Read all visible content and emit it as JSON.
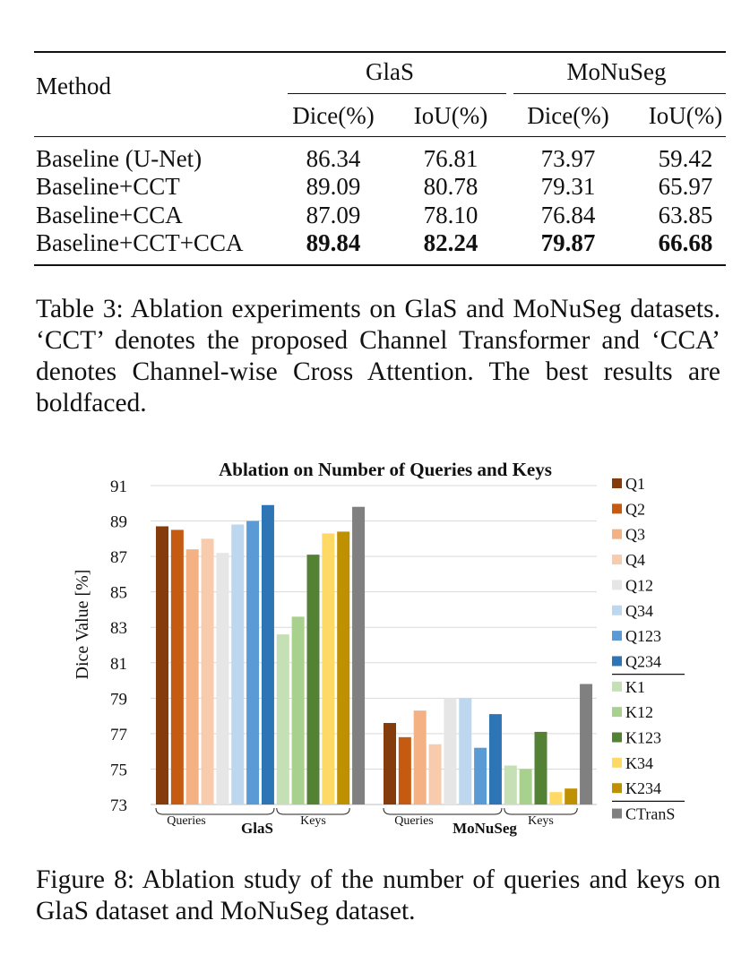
{
  "table": {
    "columns": {
      "method": "Method",
      "group1": "GlaS",
      "group2": "MoNuSeg",
      "dice": "Dice(%)",
      "iou": "IoU(%)"
    },
    "rows": [
      {
        "method": "Baseline (U-Net)",
        "values": [
          "86.34",
          "76.81",
          "73.97",
          "59.42"
        ],
        "bold": false
      },
      {
        "method": "Baseline+CCT",
        "values": [
          "89.09",
          "80.78",
          "79.31",
          "65.97"
        ],
        "bold": false
      },
      {
        "method": "Baseline+CCA",
        "values": [
          "87.09",
          "78.10",
          "76.84",
          "63.85"
        ],
        "bold": false
      },
      {
        "method": "Baseline+CCT+CCA",
        "values": [
          "89.84",
          "82.24",
          "79.87",
          "66.68"
        ],
        "bold": true
      }
    ]
  },
  "table_caption": "Table 3: Ablation experiments on GlaS and MoNuSeg datasets. ‘CCT’ denotes the proposed Channel Transformer and ‘CCA’ denotes Channel-wise Cross Attention. The best results are boldfaced.",
  "figure_caption": "Figure 8: Ablation study of the number of queries and keys on GlaS dataset and MoNuSeg dataset.",
  "chart_data": {
    "type": "bar",
    "title": "Ablation on Number of Queries and Keys",
    "ylabel": "Dice Value [%]",
    "xlabel": "",
    "ylim": [
      73,
      91
    ],
    "yticks": [
      73,
      75,
      77,
      79,
      81,
      83,
      85,
      87,
      89,
      91
    ],
    "grid": true,
    "legend_position": "right",
    "categories": [
      "GlaS",
      "MoNuSeg"
    ],
    "subgroup_labels": {
      "queries": "Queries",
      "keys": "Keys"
    },
    "series": [
      {
        "name": "Q1",
        "color": "#843c0c",
        "values": [
          88.7,
          77.6
        ]
      },
      {
        "name": "Q2",
        "color": "#c55a11",
        "values": [
          88.5,
          76.8
        ]
      },
      {
        "name": "Q3",
        "color": "#f4b183",
        "values": [
          87.4,
          78.3
        ]
      },
      {
        "name": "Q4",
        "color": "#f8cbad",
        "values": [
          88.0,
          76.4
        ]
      },
      {
        "name": "Q12",
        "color": "#e7e6e6",
        "values": [
          87.2,
          79.0
        ]
      },
      {
        "name": "Q34",
        "color": "#bdd7ee",
        "values": [
          88.8,
          79.0
        ]
      },
      {
        "name": "Q123",
        "color": "#5b9bd5",
        "values": [
          89.0,
          76.2
        ]
      },
      {
        "name": "Q234",
        "color": "#2e75b6",
        "values": [
          89.9,
          78.1
        ]
      },
      {
        "name": "K1",
        "color": "#c5e0b4",
        "values": [
          82.6,
          75.2
        ]
      },
      {
        "name": "K12",
        "color": "#a9d18e",
        "values": [
          83.6,
          75.0
        ]
      },
      {
        "name": "K123",
        "color": "#548235",
        "values": [
          87.1,
          77.1
        ]
      },
      {
        "name": "K34",
        "color": "#ffd966",
        "values": [
          88.3,
          73.7
        ]
      },
      {
        "name": "K234",
        "color": "#bf9000",
        "values": [
          88.4,
          73.9
        ]
      },
      {
        "name": "CTranS",
        "color": "#808080",
        "values": [
          89.8,
          79.8
        ]
      }
    ]
  }
}
